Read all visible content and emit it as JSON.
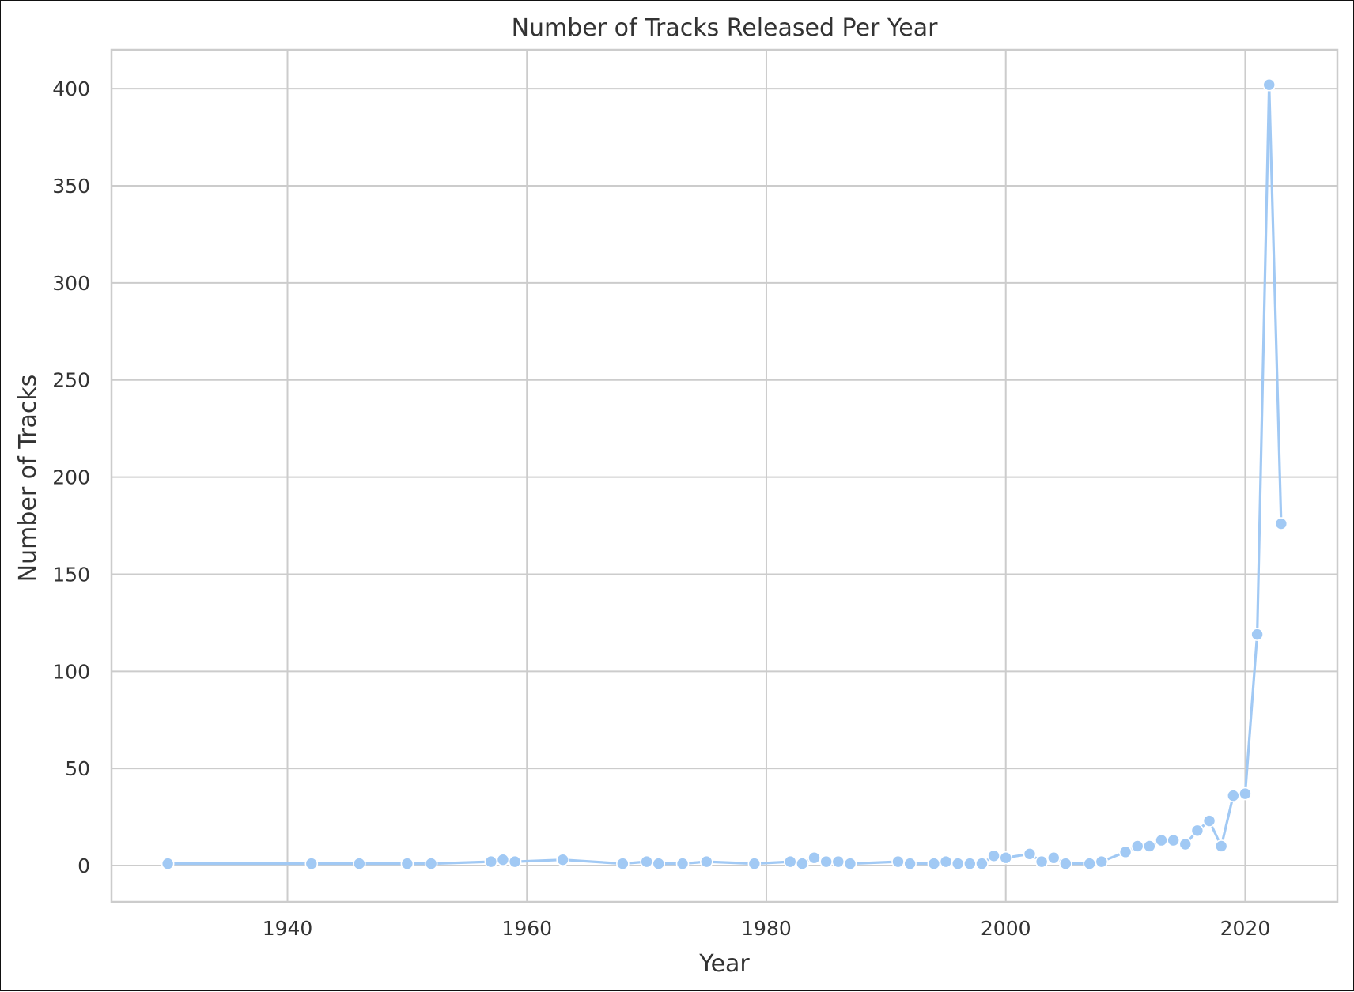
{
  "chart_data": {
    "type": "line",
    "title": "Number of Tracks Released Per Year",
    "xlabel": "Year",
    "ylabel": "Number of Tracks",
    "xlim": [
      1925.3,
      2027.7
    ],
    "ylim": [
      -18.7,
      420
    ],
    "xticks": [
      1940,
      1960,
      1980,
      2000,
      2020
    ],
    "yticks": [
      0,
      50,
      100,
      150,
      200,
      250,
      300,
      350,
      400
    ],
    "grid": true,
    "series": [
      {
        "name": "Number of Tracks",
        "color": "#a1c9f4",
        "marker": "circle",
        "x": [
          1930,
          1942,
          1946,
          1950,
          1952,
          1957,
          1958,
          1959,
          1963,
          1968,
          1970,
          1971,
          1973,
          1975,
          1979,
          1982,
          1983,
          1984,
          1985,
          1986,
          1987,
          1991,
          1992,
          1994,
          1995,
          1996,
          1997,
          1998,
          1999,
          2000,
          2002,
          2003,
          2004,
          2005,
          2007,
          2008,
          2010,
          2011,
          2012,
          2013,
          2014,
          2015,
          2016,
          2017,
          2018,
          2019,
          2020,
          2021,
          2022,
          2023
        ],
        "y": [
          1,
          1,
          1,
          1,
          1,
          2,
          3,
          2,
          3,
          1,
          2,
          1,
          1,
          2,
          1,
          2,
          1,
          4,
          2,
          2,
          1,
          2,
          1,
          1,
          2,
          1,
          1,
          1,
          5,
          4,
          6,
          2,
          4,
          1,
          1,
          2,
          7,
          10,
          10,
          13,
          13,
          11,
          18,
          23,
          10,
          36,
          37,
          119,
          402,
          176
        ]
      }
    ]
  }
}
